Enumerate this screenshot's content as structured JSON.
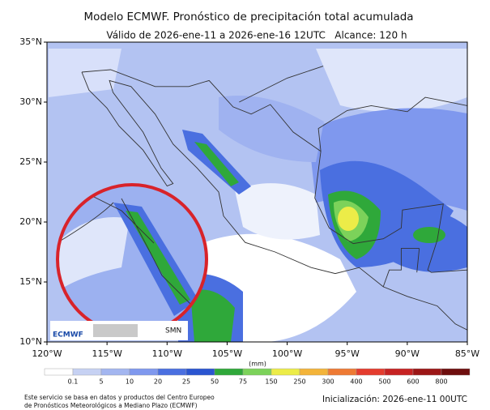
{
  "header": {
    "title": "Modelo ECMWF. Pronóstico de precipitación total acumulada",
    "subtitle": "Válido de 2026-ene-11 a 2026-ene-16 12UTC   Alcance: 120 h"
  },
  "map": {
    "lat_labels": [
      "35°N",
      "30°N",
      "25°N",
      "20°N",
      "15°N",
      "10°N"
    ],
    "lon_labels": [
      "120°W",
      "115°W",
      "110°W",
      "105°W",
      "100°W",
      "95°W",
      "90°W",
      "85°W"
    ],
    "logos": [
      "ECMWF",
      "SMN"
    ]
  },
  "colorbar": {
    "unit": "(mm)",
    "ticks": [
      "0.1",
      "5",
      "10",
      "20",
      "25",
      "50",
      "75",
      "150",
      "250",
      "300",
      "400",
      "500",
      "600",
      "800"
    ],
    "colors": [
      "#ffffff",
      "#c6d1f3",
      "#a3b6f0",
      "#7f98ee",
      "#4a6fe0",
      "#2a55d0",
      "#2fa83a",
      "#7cd25a",
      "#ecec48",
      "#f3b43a",
      "#ee7a34",
      "#e43c2e",
      "#c62222",
      "#9c1616",
      "#6e0e0e"
    ]
  },
  "footer": {
    "note": [
      "Este servicio se basa en datos y productos del Centro Europeo",
      "de Pronósticos Meteorológicos a Mediano Plazo (ECMWF)"
    ],
    "init": "Inicialización: 2026-ene-11 00UTC"
  }
}
